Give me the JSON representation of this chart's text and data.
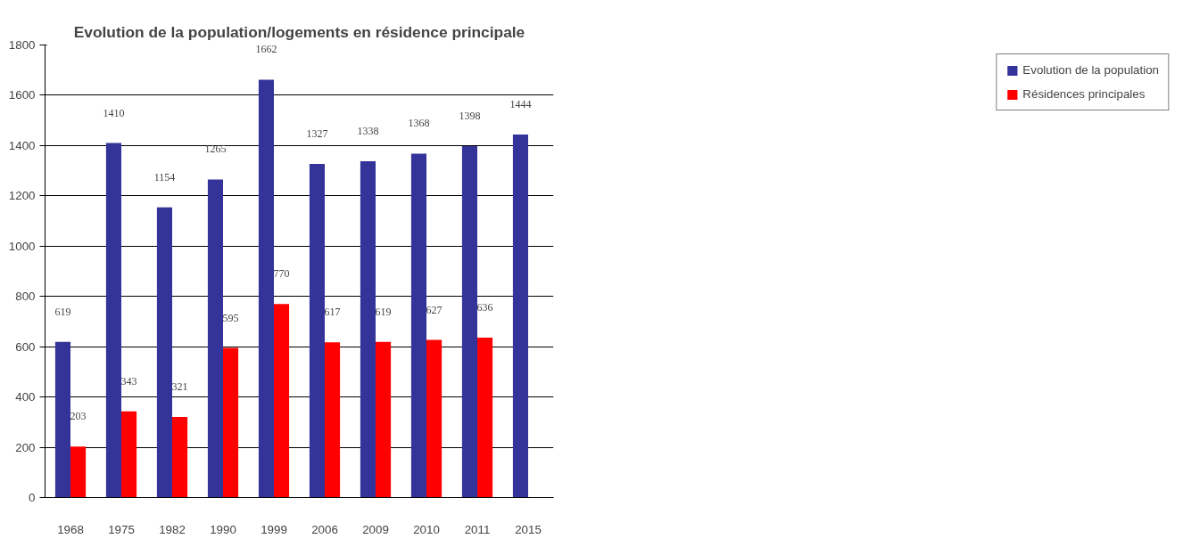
{
  "chart_data": {
    "type": "bar",
    "title": "Evolution de la population/logements en résidence principale",
    "categories": [
      "1968",
      "1975",
      "1982",
      "1990",
      "1999",
      "2006",
      "2009",
      "2010",
      "2011",
      "2015"
    ],
    "series": [
      {
        "name": "Evolution de la population",
        "color": "#333399",
        "values": [
          619,
          1410,
          1154,
          1265,
          1662,
          1327,
          1338,
          1368,
          1398,
          1444
        ]
      },
      {
        "name": "Résidences principales",
        "color": "#ff0000",
        "values": [
          203,
          343,
          321,
          595,
          770,
          617,
          619,
          627,
          636,
          null
        ]
      }
    ],
    "ylim": [
      0,
      1800
    ],
    "yticks": [
      0,
      200,
      400,
      600,
      800,
      1000,
      1200,
      1400,
      1600,
      1800
    ],
    "grid": "y",
    "legend": "right",
    "data_labels": true
  }
}
